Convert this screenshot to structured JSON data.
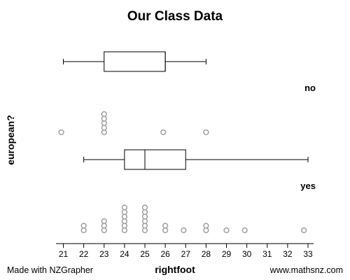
{
  "chart_data": {
    "type": "boxplot-dotplot",
    "title": "Our Class Data",
    "xlabel": "rightfoot",
    "ylabel": "european?",
    "xlim": [
      20.7,
      33.2
    ],
    "x_ticks": [
      21,
      22,
      23,
      24,
      25,
      26,
      27,
      28,
      29,
      30,
      31,
      32,
      33
    ],
    "groups": [
      {
        "name": "no",
        "box": {
          "min": 21,
          "q1": 23,
          "median": 26,
          "q3": 26,
          "max": 28
        },
        "points": [
          20.9,
          23,
          23,
          23,
          23,
          23,
          25.9,
          28
        ]
      },
      {
        "name": "yes",
        "box": {
          "min": 22,
          "q1": 24,
          "median": 25,
          "q3": 27,
          "max": 33
        },
        "points": [
          22,
          22,
          23,
          23,
          23,
          24,
          24,
          24,
          24,
          24,
          24,
          25,
          25,
          25,
          25,
          25,
          25,
          26,
          26,
          26.9,
          28,
          28,
          29,
          29.9,
          32.8
        ]
      }
    ]
  },
  "footer": {
    "left": "Made with NZGrapher",
    "right": "www.mathsnz.com"
  }
}
